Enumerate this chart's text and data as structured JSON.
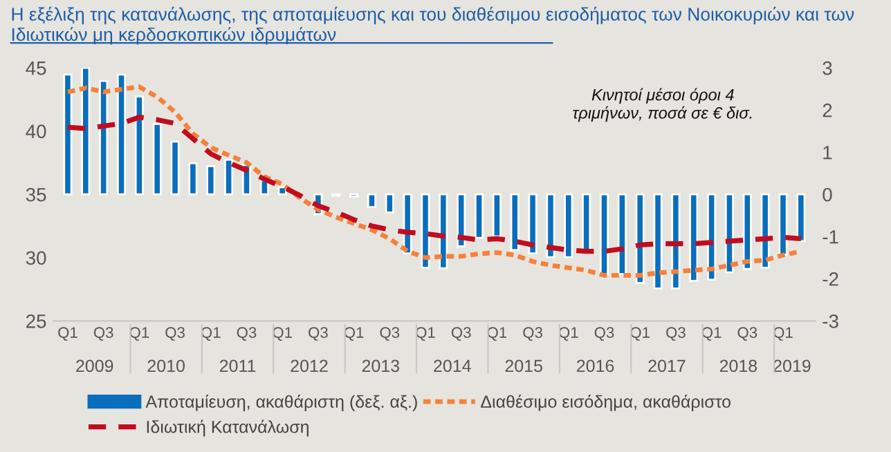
{
  "chart_data": {
    "type": "bar",
    "title": "Η εξέλιξη της κατανάλωσης, της αποταμίευσης και του διαθέσιμου εισοδήματος των Νοικοκυριών και των Ιδιωτικών μη κερδοσκοπικών ιδρυμάτων",
    "categories": [
      "Q1",
      null,
      "Q3",
      null,
      "Q1",
      null,
      "Q3",
      null,
      "Q1",
      null,
      "Q3",
      null,
      "Q1",
      null,
      "Q3",
      null,
      "Q1",
      null,
      "Q3",
      null,
      "Q1",
      null,
      "Q3",
      null,
      "Q1",
      null,
      "Q3",
      null,
      "Q1",
      null,
      "Q3",
      null,
      "Q1",
      null,
      "Q3",
      null,
      "Q1",
      null,
      "Q3",
      null,
      "Q1",
      null
    ],
    "annotations": [
      "Κινητοί μέσοι όροι 4\nτριμήνων, ποσά σε € δισ.",
      "2009",
      "2010",
      "2011",
      "2012",
      "2013",
      "2014",
      "2015",
      "2016",
      "2017",
      "2018",
      "2019"
    ],
    "series": [
      {
        "name": "Αποταμίευση, ακαθάριστη (δεξ. αξ.)",
        "axis": "y2",
        "color": "#0a6ebd",
        "values": [
          2.84,
          3.0,
          2.69,
          2.84,
          2.32,
          1.67,
          1.25,
          0.74,
          0.67,
          0.82,
          0.7,
          0.33,
          0.17,
          null,
          -0.47,
          -0.03,
          -0.05,
          -0.3,
          -0.43,
          -1.4,
          -1.74,
          -1.75,
          -1.23,
          -1.03,
          -1.0,
          -1.32,
          -1.4,
          -1.49,
          -1.49,
          -1.34,
          -1.89,
          -1.89,
          -2.1,
          -2.23,
          -2.23,
          -2.05,
          -2.02,
          -1.85,
          -1.77,
          -1.74,
          -1.43,
          -1.11
        ]
      },
      {
        "name": "Διαθέσιμο εισόδημα, ακαθάριστο",
        "type": "line",
        "line_style": "dotted",
        "color": "#f5813a",
        "values": [
          43.1,
          43.4,
          43.1,
          43.3,
          43.5,
          42.7,
          41.5,
          39.8,
          38.7,
          38.1,
          37.5,
          36.4,
          35.8,
          34.7,
          33.8,
          33.2,
          32.7,
          32.2,
          31.5,
          30.5,
          30.0,
          30.1,
          30.1,
          30.3,
          30.4,
          30.2,
          29.7,
          29.4,
          29.2,
          29.0,
          28.6,
          28.6,
          28.6,
          28.8,
          28.9,
          29.0,
          29.1,
          29.4,
          29.7,
          29.8,
          30.2,
          30.5
        ]
      },
      {
        "name": "Ιδιωτική Κατανάλωση",
        "type": "line",
        "line_style": "dashed",
        "color": "#c00d1e",
        "values": [
          40.3,
          40.2,
          40.4,
          40.6,
          41.1,
          40.9,
          40.6,
          39.4,
          38.2,
          37.5,
          36.9,
          36.2,
          35.6,
          34.9,
          34.1,
          33.6,
          33.0,
          32.5,
          32.2,
          32.0,
          31.9,
          31.7,
          31.6,
          31.4,
          31.5,
          31.3,
          31.0,
          30.8,
          30.6,
          30.5,
          30.5,
          30.7,
          31.0,
          31.1,
          31.1,
          31.1,
          31.2,
          31.3,
          31.4,
          31.5,
          31.6,
          31.5
        ]
      }
    ],
    "ylim": [
      25,
      45
    ],
    "yticks": [
      25,
      30,
      35,
      40,
      45
    ],
    "y2lim": [
      -3,
      3
    ],
    "y2ticks": [
      -3,
      -2,
      -1,
      0,
      1,
      2,
      3
    ],
    "grid": false,
    "legend": "bottom"
  }
}
